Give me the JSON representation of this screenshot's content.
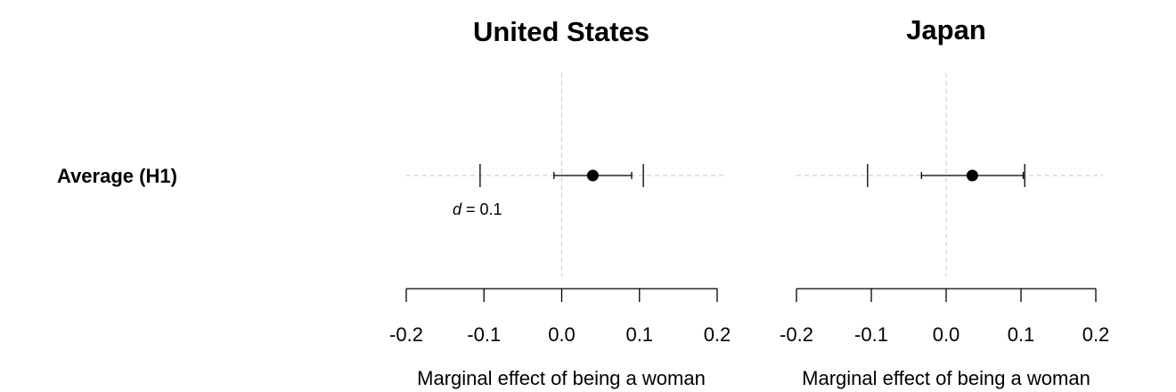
{
  "row_labels": [
    "Average (H1)"
  ],
  "chart_data": [
    {
      "type": "coefficient_plot",
      "title": "United States",
      "xlabel": "Marginal effect of being a woman",
      "xlim": [
        -0.2,
        0.2
      ],
      "ticks": [
        -0.2,
        -0.1,
        0.0,
        0.1,
        0.2
      ],
      "tick_labels": [
        "-0.2",
        "-0.1",
        "0.0",
        "0.1",
        "0.2"
      ],
      "reference_line": 0.0,
      "effect_size_markers": [
        -0.105,
        0.105
      ],
      "effect_size_label": {
        "symbol": "d",
        "text": " = 0.1"
      },
      "points": [
        {
          "label": "Average (H1)",
          "estimate": 0.04,
          "ci_low": -0.01,
          "ci_high": 0.09
        }
      ]
    },
    {
      "type": "coefficient_plot",
      "title": "Japan",
      "xlabel": "Marginal effect of being a woman",
      "xlim": [
        -0.2,
        0.2
      ],
      "ticks": [
        -0.2,
        -0.1,
        0.0,
        0.1,
        0.2
      ],
      "tick_labels": [
        "-0.2",
        "-0.1",
        "0.0",
        "0.1",
        "0.2"
      ],
      "reference_line": 0.0,
      "effect_size_markers": [
        -0.105,
        0.105
      ],
      "points": [
        {
          "label": "Average (H1)",
          "estimate": 0.035,
          "ci_low": -0.033,
          "ci_high": 0.103
        }
      ]
    }
  ]
}
